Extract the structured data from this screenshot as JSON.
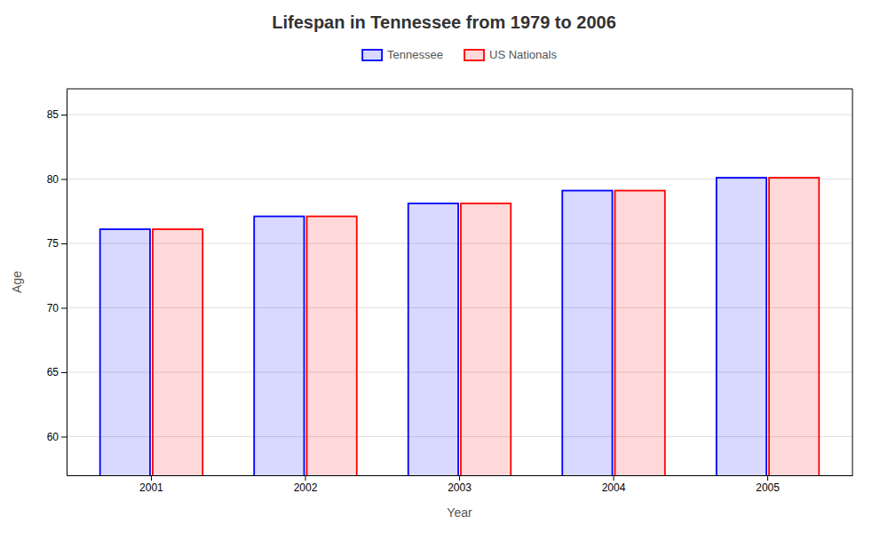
{
  "chart_data": {
    "type": "bar",
    "title": "Lifespan in Tennessee from 1979 to 2006",
    "categories": [
      "2001",
      "2002",
      "2003",
      "2004",
      "2005"
    ],
    "series": [
      {
        "name": "Tennessee",
        "color": "#0000ff",
        "values": [
          76.1,
          77.1,
          78.1,
          79.1,
          80.1
        ]
      },
      {
        "name": "US Nationals",
        "color": "#ff0000",
        "values": [
          76.1,
          77.1,
          78.1,
          79.1,
          80.1
        ]
      }
    ],
    "xlabel": "Year",
    "ylabel": "Age",
    "ylim": [
      57,
      87
    ],
    "yticks": [
      60,
      65,
      70,
      75,
      80,
      85
    ],
    "grid": true,
    "legend": "top"
  }
}
